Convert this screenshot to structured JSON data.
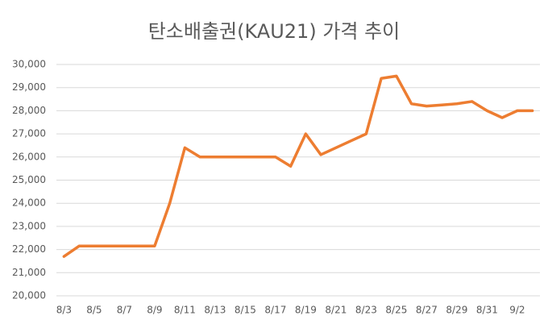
{
  "chart_data": {
    "type": "line",
    "title": "탄소배출권(KAU21) 가격 추이",
    "categories": [
      "8/3",
      null,
      "8/5",
      null,
      "8/7",
      null,
      "8/9",
      null,
      "8/11",
      null,
      "8/13",
      null,
      "8/15",
      null,
      "8/17",
      null,
      "8/19",
      null,
      "8/21",
      null,
      "8/23",
      null,
      "8/25",
      null,
      "8/27",
      null,
      "8/29",
      null,
      "8/31",
      null,
      "9/2",
      null
    ],
    "series": [
      {
        "color": "#ed7d31",
        "values": [
          21700,
          22150,
          22150,
          22150,
          22150,
          22150,
          22150,
          24000,
          26400,
          26000,
          26000,
          26000,
          26000,
          26000,
          26000,
          25600,
          27000,
          26100,
          26400,
          26700,
          27000,
          29400,
          29500,
          28300,
          28200,
          28250,
          28300,
          28400,
          28000,
          27700,
          28000,
          28000
        ]
      }
    ],
    "ylim": [
      20000,
      30000
    ],
    "yticks": [
      {
        "value": 20000,
        "label": "20,000"
      },
      {
        "value": 21000,
        "label": "21,000"
      },
      {
        "value": 22000,
        "label": "22,000"
      },
      {
        "value": 23000,
        "label": "23,000"
      },
      {
        "value": 24000,
        "label": "24,000"
      },
      {
        "value": 25000,
        "label": "25,000"
      },
      {
        "value": 26000,
        "label": "26,000"
      },
      {
        "value": 27000,
        "label": "27,000"
      },
      {
        "value": 28000,
        "label": "28,000"
      },
      {
        "value": 29000,
        "label": "29,000"
      },
      {
        "value": 30000,
        "label": "30,000"
      }
    ],
    "grid": true
  }
}
